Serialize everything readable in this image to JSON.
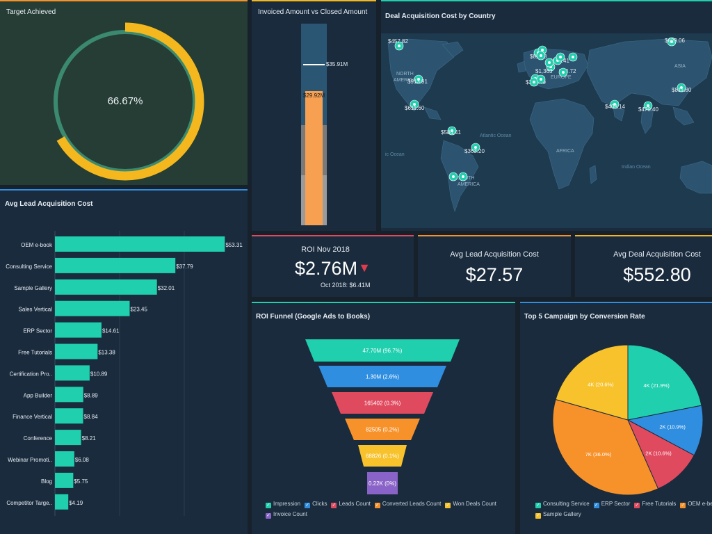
{
  "colors": {
    "teal": "#1fcfae",
    "yellow": "#f4b81e",
    "orange": "#f7922b",
    "blue": "#2f8ee0",
    "red": "#e04a5f",
    "gold": "#f7c22b",
    "purple": "#8a63c8"
  },
  "target": {
    "title": "Target Achieved",
    "value_text": "66.67%",
    "progress": 0.6667
  },
  "invoiced": {
    "title": "Invoiced Amount vs Closed Amount",
    "target_label": "$35.91M",
    "bar_label": "$29.92M",
    "target": 35.91,
    "actual": 29.92,
    "max": 45.0
  },
  "map": {
    "title": "Deal Acquisition Cost by Country",
    "regions": [
      "NORTH",
      "AMERICA",
      "EUROPE",
      "ASIA",
      "AFRICA",
      "SOUTH",
      "AMERICA",
      "Atlantic Ocean",
      "Indian Ocean",
      "ic Ocean"
    ],
    "markers": [
      "$457.82",
      "$913.91",
      "$611.60",
      "$584.41",
      "$363.20",
      "$82.13",
      "$827.41",
      "$1,363",
      "$392.49",
      "$74.72",
      "$629.06",
      "$811.80",
      "$408.14",
      "$470.40"
    ]
  },
  "kpis": [
    {
      "title": "ROI Nov 2018",
      "value": "$2.76M",
      "sub": "Oct 2018: $6.41M",
      "trend": "down"
    },
    {
      "title": "Avg Lead Acquisition Cost",
      "value": "$27.57"
    },
    {
      "title": "Avg Deal Acquisition Cost",
      "value": "$552.80"
    }
  ],
  "lead_cost": {
    "title": "Avg Lead Acquisition Cost",
    "chart_data": {
      "type": "bar",
      "orientation": "horizontal",
      "categories": [
        "OEM e-book",
        "Consulting Service",
        "Sample Gallery",
        "Sales Vertical",
        "ERP Sector",
        "Free Tutorials",
        "Certification Pro..",
        "App Builder",
        "Finance Vertical",
        "Conference",
        "Webinar Promoti..",
        "Blog",
        "Competitor Targe.."
      ],
      "values": [
        53.31,
        37.79,
        32.01,
        23.45,
        14.61,
        13.38,
        10.89,
        8.89,
        8.84,
        8.21,
        6.08,
        5.75,
        4.19
      ],
      "labels": [
        "$53.31",
        "$37.79",
        "$32.01",
        "$23.45",
        "$14.61",
        "$13.38",
        "$10.89",
        "$8.89",
        "$8.84",
        "$8.21",
        "$6.08",
        "$5.75",
        "$4.19"
      ],
      "xlim": [
        0,
        60
      ]
    }
  },
  "funnel": {
    "title": "ROI Funnel (Google Ads to Books)",
    "stages": [
      {
        "name": "Impression",
        "label": "47.70M (96.7%)"
      },
      {
        "name": "Clicks",
        "label": "1.30M (2.6%)"
      },
      {
        "name": "Leads Count",
        "label": "165402 (0.3%)"
      },
      {
        "name": "Converted Leads Count",
        "label": "82505 (0.2%)"
      },
      {
        "name": "Won Deals Count",
        "label": "68826 (0.1%)"
      },
      {
        "name": "Invoice Count",
        "label": "0.22K (0%)"
      }
    ]
  },
  "pie": {
    "title": "Top 5 Campaign by Conversion Rate",
    "chart_data": {
      "type": "pie",
      "categories": [
        "Consulting Service",
        "ERP Sector",
        "Free Tutorials",
        "OEM e-be",
        "Sample Gallery"
      ],
      "values": [
        21.9,
        10.9,
        10.6,
        36.0,
        20.6
      ],
      "labels": [
        "4K (21.9%)",
        "2K (10.9%)",
        "2K (10.6%)",
        "7K (36.0%)",
        "4K (20.6%)"
      ],
      "colors": [
        "#1fcfae",
        "#2f8ee0",
        "#e04a5f",
        "#f7922b",
        "#f7c22b"
      ]
    }
  }
}
